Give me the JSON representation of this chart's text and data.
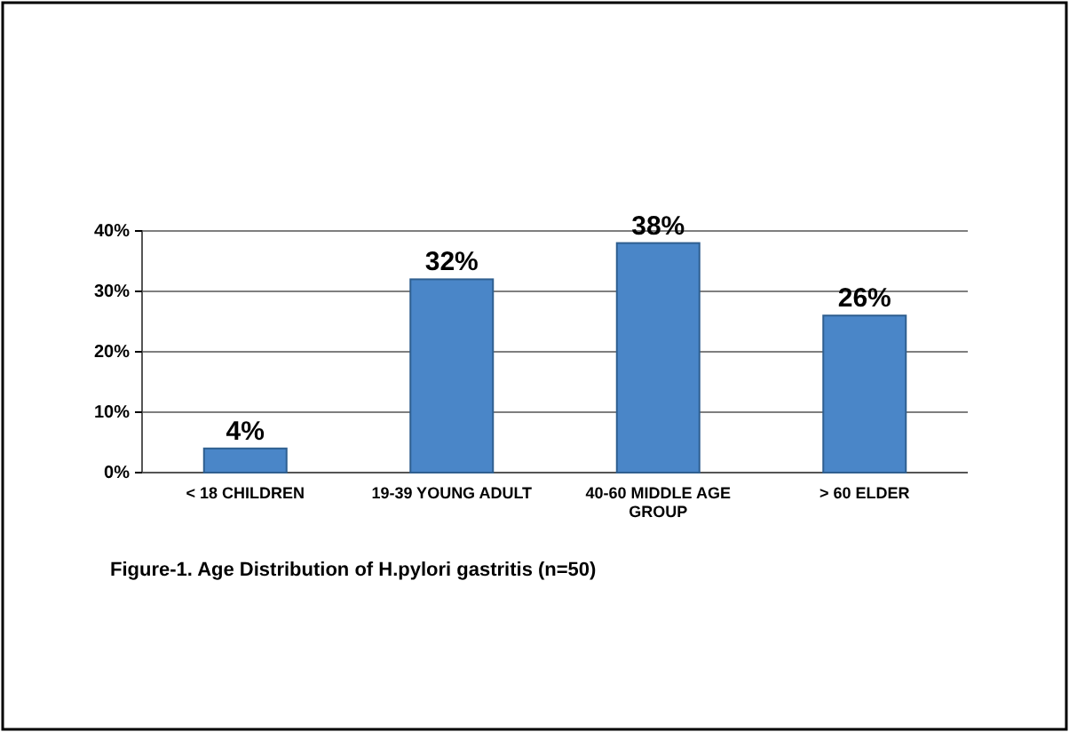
{
  "chart_data": {
    "type": "bar",
    "categories": [
      "< 18 CHILDREN",
      "19-39 YOUNG ADULT",
      "40-60 MIDDLE AGE GROUP",
      "> 60 ELDER"
    ],
    "values": [
      4,
      32,
      38,
      26
    ],
    "value_labels": [
      "4%",
      "32%",
      "38%",
      "26%"
    ],
    "color": "#4a86c8",
    "ylim": [
      0,
      40
    ],
    "yticks": [
      {
        "value": 0,
        "label": "0%"
      },
      {
        "value": 10,
        "label": "10%"
      },
      {
        "value": 20,
        "label": "20%"
      },
      {
        "value": 30,
        "label": "30%"
      },
      {
        "value": 40,
        "label": "40%"
      }
    ],
    "grid": true,
    "annotations": [
      "Figure-1.  Age Distribution of H.pylori gastritis (n=50)"
    ]
  }
}
